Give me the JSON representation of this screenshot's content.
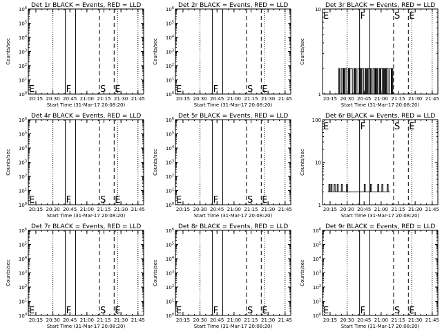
{
  "chart_data": [
    {
      "type": "line",
      "title": "Det 1r BLACK = Events, RED = LLD",
      "ylabel": "Counts/sec",
      "xlabel": "Start Time (31-Mar-17 20:08:20)",
      "yscale": "log",
      "ylim": [
        1,
        1000000
      ],
      "ytick_labels": [
        "10^0",
        "10^1",
        "10^2",
        "10^3",
        "10^4",
        "10^5",
        "10^6"
      ],
      "xlim": [
        "20:08:20",
        "21:50:00"
      ],
      "xtick_labels": [
        "20:15",
        "20:30",
        "20:45",
        "21:00",
        "21:15",
        "21:30",
        "21:45"
      ],
      "markers": [
        {
          "label": "E",
          "time": "20:08:20",
          "style": "dotted"
        },
        {
          "label": "",
          "time": "20:30",
          "style": "dotted"
        },
        {
          "label": "F",
          "time": "20:41",
          "style": "solid"
        },
        {
          "label": "",
          "time": "20:50",
          "style": "solid"
        },
        {
          "label": "S",
          "time": "21:11",
          "style": "dashed"
        },
        {
          "label": "E",
          "time": "21:24",
          "style": "dashed"
        },
        {
          "label": "",
          "time": "21:27",
          "style": "dotted"
        },
        {
          "label": "",
          "time": "21:45",
          "style": "dotted"
        }
      ],
      "series": []
    },
    {
      "type": "line",
      "title": "Det 2r BLACK = Events, RED = LLD",
      "ylabel": "Counts/sec",
      "xlabel": "Start Time (31-Mar-17 20:08:20)",
      "yscale": "log",
      "ylim": [
        1,
        1000000
      ],
      "ytick_labels": [
        "10^0",
        "10^1",
        "10^2",
        "10^3",
        "10^4",
        "10^5",
        "10^6"
      ],
      "xlim": [
        "20:08:20",
        "21:50:00"
      ],
      "xtick_labels": [
        "20:15",
        "20:30",
        "20:45",
        "21:00",
        "21:15",
        "21:30",
        "21:45"
      ],
      "markers": [
        {
          "label": "E",
          "time": "20:08:20",
          "style": "dotted"
        },
        {
          "label": "",
          "time": "20:30",
          "style": "dotted"
        },
        {
          "label": "F",
          "time": "20:41",
          "style": "solid"
        },
        {
          "label": "",
          "time": "20:50",
          "style": "solid"
        },
        {
          "label": "S",
          "time": "21:11",
          "style": "dashed"
        },
        {
          "label": "E",
          "time": "21:24",
          "style": "dashed"
        },
        {
          "label": "",
          "time": "21:27",
          "style": "dotted"
        },
        {
          "label": "",
          "time": "21:45",
          "style": "dotted"
        }
      ],
      "series": []
    },
    {
      "type": "line",
      "title": "Det 3r BLACK = Events, RED = LLD",
      "ylabel": "Counts/sec",
      "xlabel": "Start Time (31-Mar-17 20:08:20)",
      "yscale": "log",
      "ylim": [
        1,
        10
      ],
      "ytick_labels": [
        "1",
        "10"
      ],
      "xlim": [
        "20:08:20",
        "21:50:00"
      ],
      "xtick_labels": [
        "20:15",
        "20:30",
        "20:45",
        "21:00",
        "21:15",
        "21:30",
        "21:45"
      ],
      "markers": [
        {
          "label": "E",
          "time": "20:08:20",
          "style": "dotted"
        },
        {
          "label": "",
          "time": "20:30",
          "style": "dotted"
        },
        {
          "label": "F",
          "time": "20:41",
          "style": "solid"
        },
        {
          "label": "",
          "time": "20:50",
          "style": "solid"
        },
        {
          "label": "S",
          "time": "21:11",
          "style": "dashed"
        },
        {
          "label": "E",
          "time": "21:24",
          "style": "dashed"
        },
        {
          "label": "",
          "time": "21:27",
          "style": "dotted"
        },
        {
          "label": "",
          "time": "21:45",
          "style": "dotted"
        }
      ],
      "series": [
        {
          "color": "#000000",
          "band_start": "20:22",
          "band_end": "21:11",
          "values": [
            1,
            2,
            1,
            1,
            2,
            2,
            1,
            2,
            1,
            2,
            2,
            1,
            1,
            2,
            1,
            2,
            2,
            2,
            1,
            1,
            2,
            1,
            2,
            1,
            1,
            2,
            2,
            1,
            2,
            1,
            2,
            2,
            1,
            1,
            2,
            1,
            2,
            1,
            2,
            2,
            1,
            2,
            1,
            1,
            2,
            2,
            1,
            2,
            1,
            2,
            1,
            1,
            2,
            1,
            2,
            2,
            1,
            2,
            1,
            2,
            1,
            2,
            2,
            1,
            1,
            2,
            2,
            1,
            2,
            1
          ]
        }
      ]
    },
    {
      "type": "line",
      "title": "Det 4r BLACK = Events, RED = LLD",
      "ylabel": "Counts/sec",
      "xlabel": "Start Time (31-Mar-17 20:08:20)",
      "yscale": "log",
      "ylim": [
        1,
        1000000
      ],
      "ytick_labels": [
        "10^0",
        "10^1",
        "10^2",
        "10^3",
        "10^4",
        "10^5",
        "10^6"
      ],
      "xlim": [
        "20:08:20",
        "21:50:00"
      ],
      "xtick_labels": [
        "20:15",
        "20:30",
        "20:45",
        "21:00",
        "21:15",
        "21:30",
        "21:45"
      ],
      "markers": [
        {
          "label": "E",
          "time": "20:08:20",
          "style": "dotted"
        },
        {
          "label": "",
          "time": "20:30",
          "style": "dotted"
        },
        {
          "label": "F",
          "time": "20:41",
          "style": "solid"
        },
        {
          "label": "",
          "time": "20:50",
          "style": "solid"
        },
        {
          "label": "S",
          "time": "21:11",
          "style": "dashed"
        },
        {
          "label": "E",
          "time": "21:24",
          "style": "dashed"
        },
        {
          "label": "",
          "time": "21:27",
          "style": "dotted"
        },
        {
          "label": "",
          "time": "21:45",
          "style": "dotted"
        }
      ],
      "series": []
    },
    {
      "type": "line",
      "title": "Det 5r BLACK = Events, RED = LLD",
      "ylabel": "Counts/sec",
      "xlabel": "Start Time (31-Mar-17 20:08:20)",
      "yscale": "log",
      "ylim": [
        1,
        1000000
      ],
      "ytick_labels": [
        "10^0",
        "10^1",
        "10^2",
        "10^3",
        "10^4",
        "10^5",
        "10^6"
      ],
      "xlim": [
        "20:08:20",
        "21:50:00"
      ],
      "xtick_labels": [
        "20:15",
        "20:30",
        "20:45",
        "21:00",
        "21:15",
        "21:30",
        "21:45"
      ],
      "markers": [
        {
          "label": "E",
          "time": "20:08:20",
          "style": "dotted"
        },
        {
          "label": "",
          "time": "20:30",
          "style": "dotted"
        },
        {
          "label": "F",
          "time": "20:41",
          "style": "solid"
        },
        {
          "label": "",
          "time": "20:50",
          "style": "solid"
        },
        {
          "label": "S",
          "time": "21:11",
          "style": "dashed"
        },
        {
          "label": "E",
          "time": "21:24",
          "style": "dashed"
        },
        {
          "label": "",
          "time": "21:27",
          "style": "dotted"
        },
        {
          "label": "",
          "time": "21:45",
          "style": "dotted"
        }
      ],
      "series": []
    },
    {
      "type": "line",
      "title": "Det 6r BLACK = Events, RED = LLD",
      "ylabel": "Counts/sec",
      "xlabel": "Start Time (31-Mar-17 20:08:20)",
      "yscale": "log",
      "ylim": [
        1,
        100
      ],
      "ytick_labels": [
        "1",
        "10",
        "100"
      ],
      "xlim": [
        "20:08:20",
        "21:50:00"
      ],
      "xtick_labels": [
        "20:15",
        "20:30",
        "20:45",
        "21:00",
        "21:15",
        "21:30",
        "21:45"
      ],
      "markers": [
        {
          "label": "E",
          "time": "20:08:20",
          "style": "dotted"
        },
        {
          "label": "",
          "time": "20:30",
          "style": "dotted"
        },
        {
          "label": "F",
          "time": "20:41",
          "style": "solid"
        },
        {
          "label": "",
          "time": "20:50",
          "style": "solid"
        },
        {
          "label": "S",
          "time": "21:11",
          "style": "dashed"
        },
        {
          "label": "E",
          "time": "21:24",
          "style": "dashed"
        },
        {
          "label": "",
          "time": "21:27",
          "style": "dotted"
        },
        {
          "label": "",
          "time": "21:45",
          "style": "dotted"
        }
      ],
      "series": [
        {
          "color": "#000000",
          "band_start": "20:13",
          "band_end": "21:08",
          "values": [
            2,
            3,
            2,
            3,
            2,
            2,
            3,
            2,
            2,
            3,
            2,
            2,
            2,
            3,
            2,
            2,
            2,
            2,
            3,
            2,
            2,
            2,
            2,
            2,
            2,
            2,
            2,
            2,
            2,
            2,
            2,
            2,
            2,
            2,
            2,
            3,
            2,
            2,
            2,
            2,
            2,
            3,
            2,
            2,
            2,
            2,
            2,
            2,
            3,
            2,
            2,
            2,
            3,
            2,
            2,
            2,
            2,
            3,
            2,
            2
          ]
        }
      ]
    },
    {
      "type": "line",
      "title": "Det 7r BLACK = Events, RED = LLD",
      "ylabel": "Counts/sec",
      "xlabel": "Start Time (31-Mar-17 20:08:20)",
      "yscale": "log",
      "ylim": [
        1,
        1000000
      ],
      "ytick_labels": [
        "10^0",
        "10^1",
        "10^2",
        "10^3",
        "10^4",
        "10^5",
        "10^6"
      ],
      "xlim": [
        "20:08:20",
        "21:50:00"
      ],
      "xtick_labels": [
        "20:15",
        "20:30",
        "20:45",
        "21:00",
        "21:15",
        "21:30",
        "21:45"
      ],
      "markers": [
        {
          "label": "E",
          "time": "20:08:20",
          "style": "dotted"
        },
        {
          "label": "",
          "time": "20:30",
          "style": "dotted"
        },
        {
          "label": "F",
          "time": "20:41",
          "style": "solid"
        },
        {
          "label": "",
          "time": "20:50",
          "style": "solid"
        },
        {
          "label": "S",
          "time": "21:11",
          "style": "dashed"
        },
        {
          "label": "E",
          "time": "21:24",
          "style": "dashed"
        },
        {
          "label": "",
          "time": "21:27",
          "style": "dotted"
        },
        {
          "label": "",
          "time": "21:45",
          "style": "dotted"
        }
      ],
      "series": []
    },
    {
      "type": "line",
      "title": "Det 8r BLACK = Events, RED = LLD",
      "ylabel": "Counts/sec",
      "xlabel": "Start Time (31-Mar-17 20:08:20)",
      "yscale": "log",
      "ylim": [
        1,
        1000000
      ],
      "ytick_labels": [
        "10^0",
        "10^1",
        "10^2",
        "10^3",
        "10^4",
        "10^5",
        "10^6"
      ],
      "xlim": [
        "20:08:20",
        "21:50:00"
      ],
      "xtick_labels": [
        "20:15",
        "20:30",
        "20:45",
        "21:00",
        "21:15",
        "21:30",
        "21:45"
      ],
      "markers": [
        {
          "label": "E",
          "time": "20:08:20",
          "style": "dotted"
        },
        {
          "label": "",
          "time": "20:30",
          "style": "dotted"
        },
        {
          "label": "F",
          "time": "20:41",
          "style": "solid"
        },
        {
          "label": "",
          "time": "20:50",
          "style": "solid"
        },
        {
          "label": "S",
          "time": "21:11",
          "style": "dashed"
        },
        {
          "label": "E",
          "time": "21:24",
          "style": "dashed"
        },
        {
          "label": "",
          "time": "21:27",
          "style": "dotted"
        },
        {
          "label": "",
          "time": "21:45",
          "style": "dotted"
        }
      ],
      "series": []
    },
    {
      "type": "line",
      "title": "Det 9r BLACK = Events, RED = LLD",
      "ylabel": "Counts/sec",
      "xlabel": "Start Time (31-Mar-17 20:08:20)",
      "yscale": "log",
      "ylim": [
        1,
        1000000
      ],
      "ytick_labels": [
        "10^0",
        "10^1",
        "10^2",
        "10^3",
        "10^4",
        "10^5",
        "10^6"
      ],
      "xlim": [
        "20:08:20",
        "21:50:00"
      ],
      "xtick_labels": [
        "20:15",
        "20:30",
        "20:45",
        "21:00",
        "21:15",
        "21:30",
        "21:45"
      ],
      "markers": [
        {
          "label": "E",
          "time": "20:08:20",
          "style": "dotted"
        },
        {
          "label": "",
          "time": "20:30",
          "style": "dotted"
        },
        {
          "label": "F",
          "time": "20:41",
          "style": "solid"
        },
        {
          "label": "",
          "time": "20:50",
          "style": "solid"
        },
        {
          "label": "S",
          "time": "21:11",
          "style": "dashed"
        },
        {
          "label": "E",
          "time": "21:24",
          "style": "dashed"
        },
        {
          "label": "",
          "time": "21:27",
          "style": "dotted"
        },
        {
          "label": "",
          "time": "21:45",
          "style": "dotted"
        }
      ],
      "series": []
    }
  ]
}
